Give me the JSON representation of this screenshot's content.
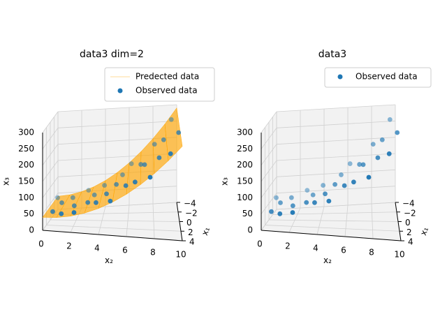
{
  "chart_data": [
    {
      "type": "scatter3d",
      "title": "data3  dim=2",
      "xlabel": "x₂",
      "ylabel": "x₁",
      "zlabel": "x₃",
      "xlim": [
        0,
        10
      ],
      "ylim": [
        -4,
        4
      ],
      "zlim": [
        0,
        300
      ],
      "xticks": [
        0,
        2,
        4,
        6,
        8,
        10
      ],
      "yticks": [
        {
          "value": -4,
          "label": "−4"
        },
        {
          "value": -2,
          "label": "−2"
        },
        0,
        2,
        4
      ],
      "zticks": [
        0,
        50,
        100,
        150,
        200,
        250,
        300
      ],
      "grid": true,
      "legend": "upper right",
      "series": [
        {
          "name": "Predected data",
          "type": "surface",
          "color": "#ffa500",
          "x": [
            0,
            1,
            2,
            3,
            4,
            5,
            6,
            7,
            8,
            9,
            10
          ],
          "values": [
            40,
            42.5,
            50,
            62.5,
            80,
            102.5,
            130,
            162.5,
            200,
            242.5,
            290
          ]
        },
        {
          "name": "Observed data",
          "type": "scatter",
          "color": "#1f77b4",
          "x": [
            0.1,
            0.4,
            0.8,
            1.2,
            1.5,
            1.9,
            2.2,
            2.6,
            3.0,
            3.3,
            3.7,
            4.0,
            4.4,
            4.8,
            5.1,
            5.5,
            5.9,
            6.2,
            6.6,
            7.0,
            7.3,
            7.7,
            8.1,
            8.4,
            8.8,
            9.2,
            9.5,
            9.9
          ],
          "y": [
            -3.2,
            1.5,
            -0.7,
            2.8,
            -2.1,
            0.4,
            3.5,
            -3.8,
            1.1,
            -1.4,
            2.2,
            -2.9,
            0.8,
            3.1,
            -0.3,
            -2.5,
            1.9,
            -3.5,
            2.6,
            -1.1,
            0.2,
            3.8,
            -2.2,
            1.3,
            -0.9,
            2.9,
            -3.0,
            0.6
          ],
          "values": [
            42,
            38,
            47,
            44,
            50,
            48,
            57,
            55,
            66,
            64,
            78,
            77,
            91,
            95,
            108,
            112,
            131,
            133,
            152,
            160,
            176,
            185,
            207,
            213,
            238,
            249,
            270,
            282
          ]
        }
      ]
    },
    {
      "type": "scatter3d",
      "title": "data3",
      "xlabel": "x₂",
      "ylabel": "x₁",
      "zlabel": "x₃",
      "xlim": [
        0,
        10
      ],
      "ylim": [
        -4,
        4
      ],
      "zlim": [
        0,
        300
      ],
      "xticks": [
        0,
        2,
        4,
        6,
        8,
        10
      ],
      "yticks": [
        {
          "value": -4,
          "label": "−4"
        },
        {
          "value": -2,
          "label": "−2"
        },
        0,
        2,
        4
      ],
      "zticks": [
        0,
        50,
        100,
        150,
        200,
        250,
        300
      ],
      "grid": true,
      "legend": "upper right",
      "series": [
        {
          "name": "Observed data",
          "type": "scatter",
          "color": "#1f77b4",
          "x": [
            0.1,
            0.4,
            0.8,
            1.2,
            1.5,
            1.9,
            2.2,
            2.6,
            3.0,
            3.3,
            3.7,
            4.0,
            4.4,
            4.8,
            5.1,
            5.5,
            5.9,
            6.2,
            6.6,
            7.0,
            7.3,
            7.7,
            8.1,
            8.4,
            8.8,
            9.2,
            9.5,
            9.9
          ],
          "y": [
            -3.2,
            1.5,
            -0.7,
            2.8,
            -2.1,
            0.4,
            3.5,
            -3.8,
            1.1,
            -1.4,
            2.2,
            -2.9,
            0.8,
            3.1,
            -0.3,
            -2.5,
            1.9,
            -3.5,
            2.6,
            -1.1,
            0.2,
            3.8,
            -2.2,
            1.3,
            -0.9,
            2.9,
            -3.0,
            0.6
          ],
          "values": [
            42,
            38,
            47,
            44,
            50,
            48,
            57,
            55,
            66,
            64,
            78,
            77,
            91,
            95,
            108,
            112,
            131,
            133,
            152,
            160,
            176,
            185,
            207,
            213,
            238,
            249,
            270,
            282
          ]
        }
      ]
    }
  ]
}
